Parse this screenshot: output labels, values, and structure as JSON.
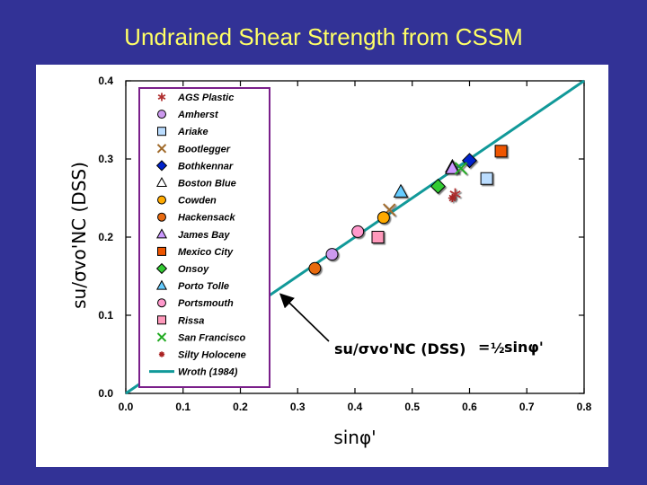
{
  "slide_title": "Undrained Shear Strength from CSSM",
  "chart_data": {
    "type": "scatter",
    "title": "Undrained Shear Strength from CSSM",
    "xlabel": "sinφ'",
    "ylabel": "su/σvo'NC (DSS)",
    "xlim": [
      0.0,
      0.8
    ],
    "ylim": [
      0.0,
      0.4
    ],
    "x_ticks": [
      "0.0",
      "0.1",
      "0.2",
      "0.3",
      "0.4",
      "0.5",
      "0.6",
      "0.7",
      "0.8"
    ],
    "y_ticks": [
      "0.0",
      "0.1",
      "0.2",
      "0.3",
      "0.4"
    ],
    "grid": false,
    "legend_position": "top-left",
    "annotation": {
      "lhs": "su/σvo'NC (DSS)",
      "eq": "=",
      "half": "½",
      "rhs": "sinφ'",
      "arrow_to": [
        0.27,
        0.127
      ]
    },
    "series": [
      {
        "name": "AGS Plastic",
        "marker": "asterisk",
        "color": "#b03030",
        "points": [
          [
            0.575,
            0.255
          ]
        ]
      },
      {
        "name": "Amherst",
        "marker": "circle",
        "color": "#cc99ee",
        "points": [
          [
            0.36,
            0.178
          ]
        ]
      },
      {
        "name": "Ariake",
        "marker": "square",
        "color": "#bbddff",
        "points": [
          [
            0.63,
            0.275
          ]
        ]
      },
      {
        "name": "Bootlegger",
        "marker": "x",
        "color": "#a06a2a",
        "points": [
          [
            0.46,
            0.235
          ]
        ]
      },
      {
        "name": "Bothkennar",
        "marker": "diamond",
        "color": "#0022cc",
        "points": [
          [
            0.6,
            0.298
          ]
        ]
      },
      {
        "name": "Boston Blue",
        "marker": "triangle",
        "color": "#ffffff",
        "points": [
          [
            0.57,
            0.29
          ]
        ]
      },
      {
        "name": "Cowden",
        "marker": "circle",
        "color": "#ffaa00",
        "points": [
          [
            0.45,
            0.225
          ]
        ]
      },
      {
        "name": "Hackensack",
        "marker": "circle",
        "color": "#e86a10",
        "points": [
          [
            0.33,
            0.16
          ]
        ]
      },
      {
        "name": "James Bay",
        "marker": "triangle",
        "color": "#cc99ff",
        "points": [
          [
            0.57,
            0.288
          ]
        ]
      },
      {
        "name": "Mexico City",
        "marker": "square",
        "color": "#ee5500",
        "points": [
          [
            0.655,
            0.31
          ]
        ]
      },
      {
        "name": "Onsoy",
        "marker": "diamond",
        "color": "#33cc33",
        "points": [
          [
            0.545,
            0.265
          ]
        ]
      },
      {
        "name": "Porto Tolle",
        "marker": "triangle",
        "color": "#66ccff",
        "points": [
          [
            0.48,
            0.258
          ]
        ]
      },
      {
        "name": "Portsmouth",
        "marker": "circle",
        "color": "#ff99cc",
        "points": [
          [
            0.405,
            0.207
          ]
        ]
      },
      {
        "name": "Rissa",
        "marker": "square",
        "color": "#ff99bb",
        "points": [
          [
            0.44,
            0.2
          ]
        ]
      },
      {
        "name": "San Francisco",
        "marker": "x",
        "color": "#22aa22",
        "points": [
          [
            0.585,
            0.288
          ]
        ]
      },
      {
        "name": "Silty Holocene",
        "marker": "star",
        "color": "#aa2222",
        "points": [
          [
            0.57,
            0.25
          ]
        ]
      },
      {
        "name": "Wroth (1984)",
        "marker": "line",
        "color": "#119999",
        "line": [
          [
            0.0,
            0.0
          ],
          [
            0.8,
            0.4
          ]
        ]
      }
    ]
  }
}
